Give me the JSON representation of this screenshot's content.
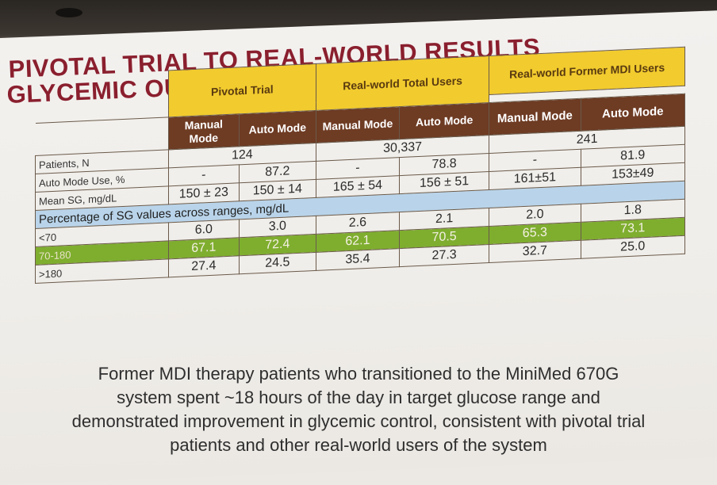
{
  "title": {
    "line1": "PIVOTAL TRIAL TO REAL-WORLD RESULTS",
    "line2": "GLYCEMIC OUTCOMES COMPARISON"
  },
  "table": {
    "groups": [
      {
        "label": "Pivotal Trial"
      },
      {
        "label": "Real-world Total Users"
      },
      {
        "label": "Real-world Former MDI Users"
      }
    ],
    "subheaders": [
      "Manual Mode",
      "Auto Mode",
      "Manual Mode",
      "Auto Mode",
      "Manual Mode",
      "Auto Mode"
    ],
    "rows": [
      {
        "label": "Patients, N",
        "pivotal": "124",
        "total": "30,337",
        "mdi": "241"
      },
      {
        "label": "Auto Mode Use, %",
        "cells": [
          "-",
          "87.2",
          "-",
          "78.8",
          "-",
          "81.9"
        ]
      },
      {
        "label": "Mean SG, mg/dL",
        "cells": [
          "150 ± 23",
          "150 ± 14",
          "165 ± 54",
          "156 ± 51",
          "161±51",
          "153±49"
        ]
      }
    ],
    "section_label": "Percentage of SG values across ranges, mg/dL",
    "range_rows": [
      {
        "label": "<70",
        "cells": [
          "6.0",
          "3.0",
          "2.6",
          "2.1",
          "2.0",
          "1.8"
        ]
      },
      {
        "label": "70-180",
        "cells": [
          "67.1",
          "72.4",
          "62.1",
          "70.5",
          "65.3",
          "73.1"
        ]
      },
      {
        "label": ">180",
        "cells": [
          "27.4",
          "24.5",
          "35.4",
          "27.3",
          "32.7",
          "25.0"
        ]
      }
    ],
    "colors": {
      "yellow": "#f2cb2e",
      "brown": "#6e3b23",
      "blue": "#b9d4ea",
      "green": "#7fae2f"
    }
  },
  "caption": {
    "line1": "Former MDI therapy patients who transitioned to the MiniMed 670G",
    "line2": "system spent ~18 hours of the day in target glucose range and",
    "line3": "demonstrated improvement in glycemic control, consistent with pivotal trial",
    "line4": "patients and other real-world users of the system"
  }
}
